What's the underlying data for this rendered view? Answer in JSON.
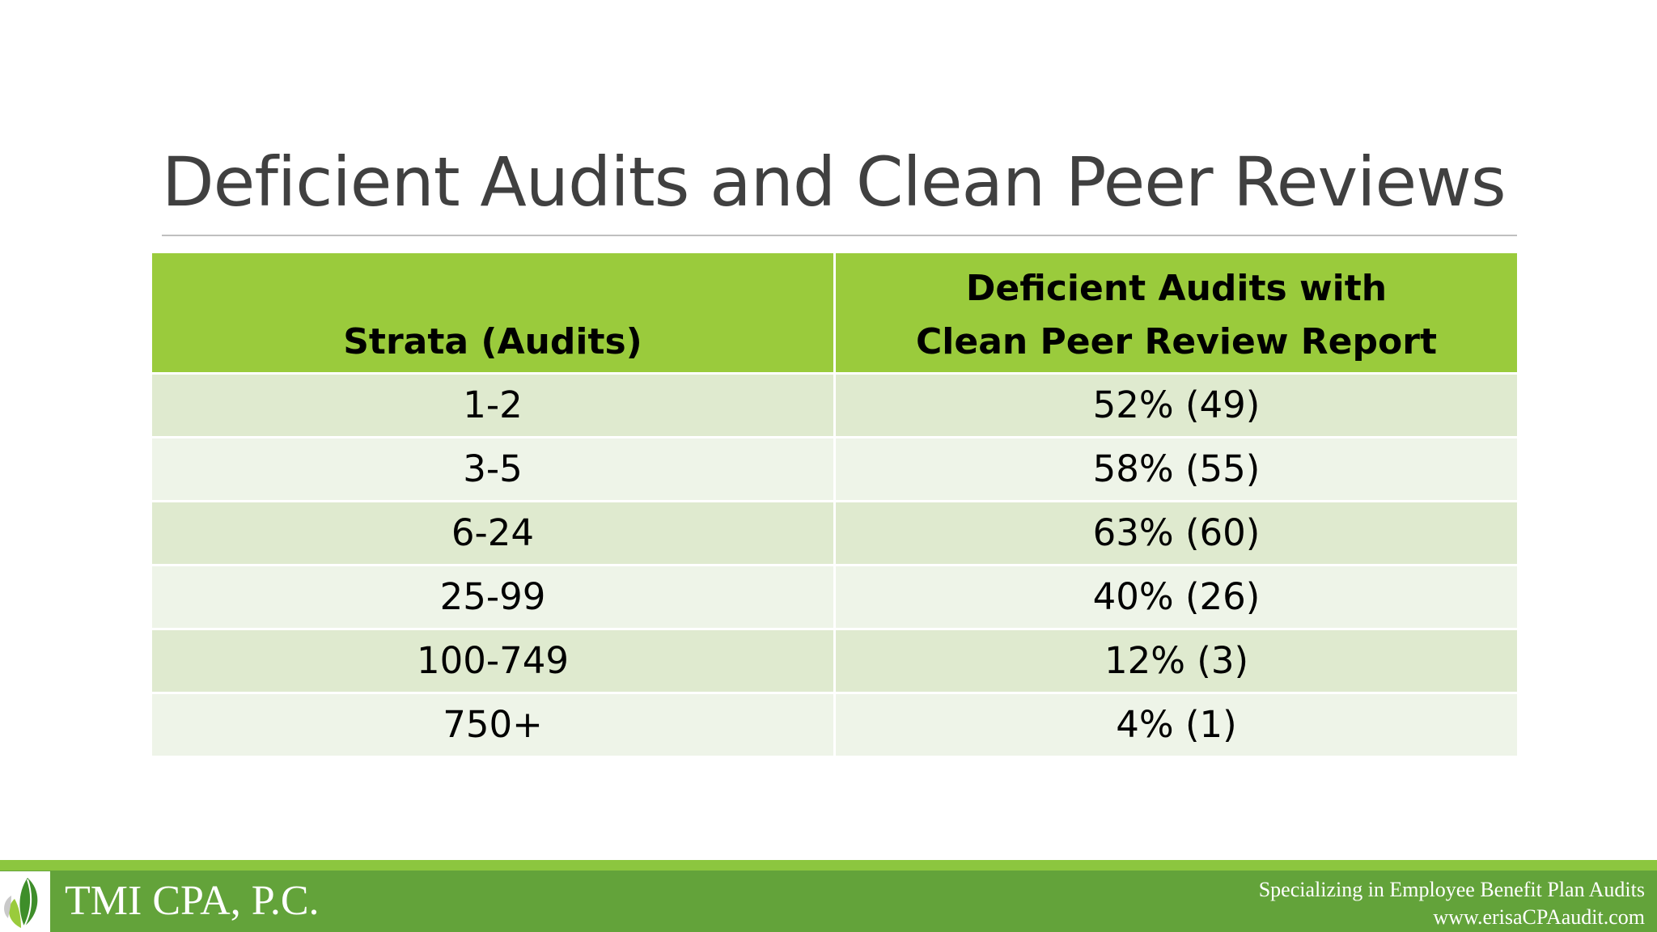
{
  "slide": {
    "title": "Deficient Audits and Clean Peer Reviews"
  },
  "table": {
    "headers": [
      "Strata (Audits)",
      "Deficient Audits with",
      "Clean Peer Review Report"
    ],
    "rows": [
      {
        "strata": "1-2",
        "value": "52% (49)"
      },
      {
        "strata": "3-5",
        "value": "58% (55)"
      },
      {
        "strata": "6-24",
        "value": "63% (60)"
      },
      {
        "strata": "25-99",
        "value": "40% (26)"
      },
      {
        "strata": "100-749",
        "value": "12% (3)"
      },
      {
        "strata": "750+",
        "value": "4% (1)"
      }
    ]
  },
  "footer": {
    "company": "TMI CPA, P.C.",
    "tagline": "Specializing in Employee Benefit Plan Audits",
    "website": "www.erisaCPAaudit.com",
    "logo_icon": "leaf-logo-icon"
  },
  "colors": {
    "header_green": "#9acb3c",
    "row_odd": "#dfeacf",
    "row_even": "#eef4e8",
    "footer_green": "#63a33a",
    "footer_accent": "#8cc63f",
    "title_gray": "#404040"
  }
}
